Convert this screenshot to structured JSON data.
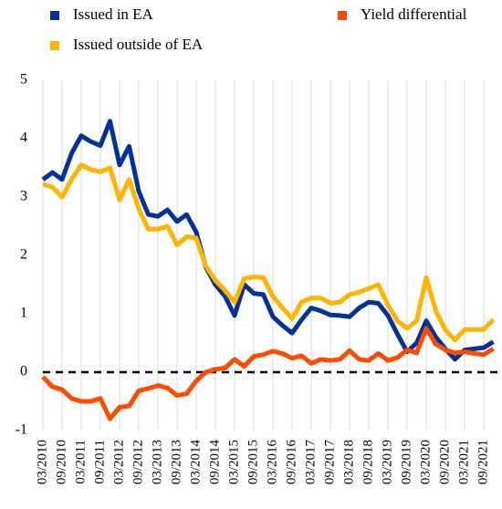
{
  "chart_data": {
    "type": "line",
    "categories": [
      "03/2010",
      null,
      "09/2010",
      null,
      "03/2011",
      null,
      "09/2011",
      null,
      "03/2012",
      null,
      "09/2012",
      null,
      "03/2013",
      null,
      "09/2013",
      null,
      "03/2014",
      null,
      "09/2014",
      null,
      "03/2015",
      null,
      "09/2015",
      null,
      "03/2016",
      null,
      "09/2016",
      null,
      "03/2017",
      null,
      "09/2017",
      null,
      "03/2018",
      null,
      "09/2018",
      null,
      "03/2019",
      null,
      "09/2019",
      null,
      "03/2020",
      null,
      "09/2020",
      null,
      "03/2021",
      null,
      "09/2021",
      null
    ],
    "series": [
      {
        "name": "Issued in EA",
        "color": "#003299",
        "values": [
          3.3,
          3.42,
          3.3,
          3.75,
          4.05,
          3.95,
          3.88,
          4.3,
          3.55,
          3.87,
          3.1,
          2.7,
          2.67,
          2.78,
          2.58,
          2.7,
          2.4,
          1.8,
          1.5,
          1.3,
          0.97,
          1.5,
          1.35,
          1.33,
          0.95,
          0.8,
          0.67,
          0.9,
          1.1,
          1.05,
          0.98,
          0.97,
          0.95,
          1.1,
          1.2,
          1.18,
          0.97,
          0.65,
          0.35,
          0.5,
          0.88,
          0.6,
          0.4,
          0.22,
          0.38,
          0.4,
          0.42,
          0.52
        ]
      },
      {
        "name": "Issued outside of EA",
        "color": "#FFB400",
        "values": [
          3.22,
          3.17,
          3.0,
          3.3,
          3.55,
          3.47,
          3.43,
          3.5,
          2.95,
          3.3,
          2.8,
          2.45,
          2.45,
          2.5,
          2.18,
          2.32,
          2.3,
          1.82,
          1.57,
          1.4,
          1.2,
          1.6,
          1.63,
          1.62,
          1.3,
          1.1,
          0.92,
          1.2,
          1.27,
          1.27,
          1.18,
          1.2,
          1.33,
          1.37,
          1.43,
          1.5,
          1.15,
          0.88,
          0.75,
          0.88,
          1.62,
          1.05,
          0.72,
          0.55,
          0.73,
          0.73,
          0.73,
          0.9
        ]
      },
      {
        "name": "Yield differential",
        "color": "#FF4B00",
        "values": [
          -0.08,
          -0.25,
          -0.3,
          -0.45,
          -0.5,
          -0.5,
          -0.45,
          -0.8,
          -0.6,
          -0.58,
          -0.32,
          -0.28,
          -0.23,
          -0.27,
          -0.4,
          -0.37,
          -0.15,
          0.0,
          0.05,
          0.07,
          0.22,
          0.1,
          0.27,
          0.3,
          0.36,
          0.32,
          0.24,
          0.28,
          0.15,
          0.22,
          0.2,
          0.22,
          0.37,
          0.22,
          0.2,
          0.32,
          0.2,
          0.25,
          0.38,
          0.33,
          0.75,
          0.48,
          0.38,
          0.33,
          0.35,
          0.32,
          0.3,
          0.4
        ]
      }
    ],
    "ylim": [
      -1,
      5
    ],
    "yticks": [
      -1,
      0,
      1,
      2,
      3,
      4,
      5
    ],
    "reference_line": 0,
    "grid": true
  }
}
